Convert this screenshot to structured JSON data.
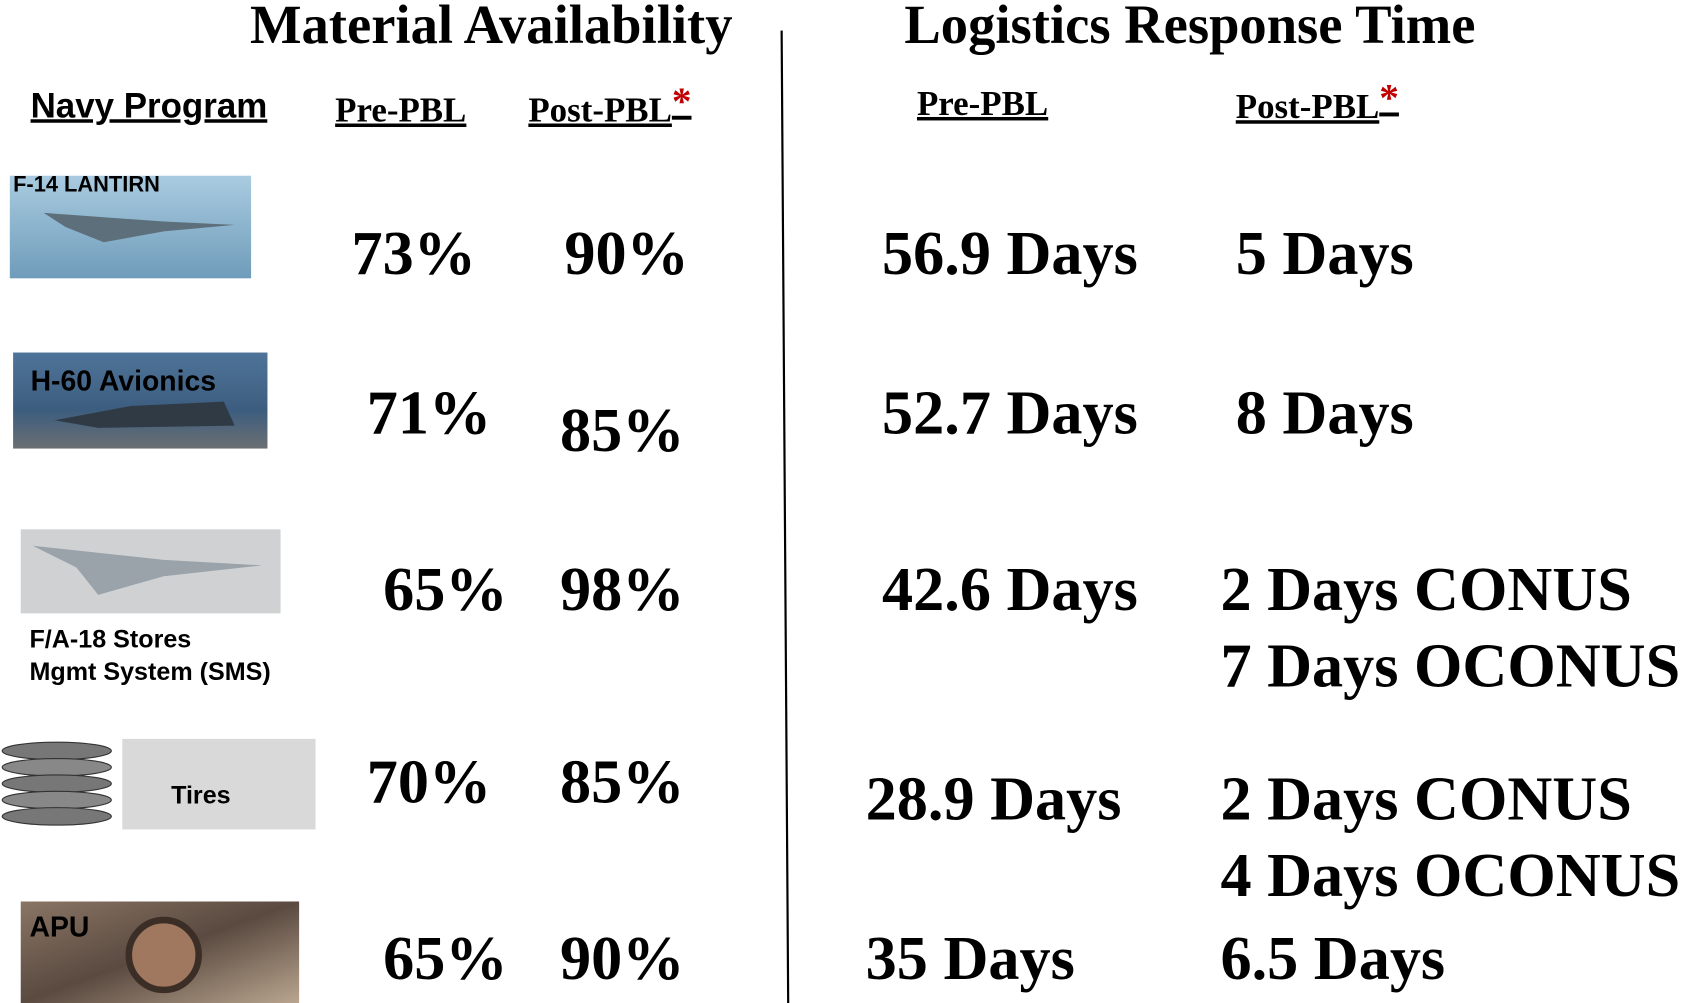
{
  "headings": {
    "availability": "Material Availability",
    "response": "Logistics Response Time"
  },
  "columns": {
    "program": "Navy Program",
    "availability_pre": "Pre-PBL",
    "availability_post": {
      "text": "Post-PBL",
      "mark": "*"
    },
    "response_pre": "Pre-PBL",
    "response_post": {
      "text": "Post-PBL",
      "mark": "*"
    }
  },
  "rows": [
    {
      "program": [
        "F-14 LANTIRN"
      ],
      "availability_pre": "73%",
      "availability_post": "90%",
      "response_pre": "56.9 Days",
      "response_post": [
        "5 Days"
      ]
    },
    {
      "program": [
        "H-60 Avionics"
      ],
      "availability_pre": "71%",
      "availability_post": "85%",
      "response_pre": "52.7 Days",
      "response_post": [
        "8 Days"
      ]
    },
    {
      "program": [
        "F/A-18 Stores",
        "Mgmt System (SMS)"
      ],
      "availability_pre": "65%",
      "availability_post": "98%",
      "response_pre": "42.6 Days",
      "response_post": [
        "2 Days CONUS",
        "7 Days OCONUS"
      ]
    },
    {
      "program": [
        "Tires"
      ],
      "availability_pre": "70%",
      "availability_post": "85%",
      "response_pre": "28.9 Days",
      "response_post": [
        "2 Days CONUS",
        "4 Days OCONUS"
      ]
    },
    {
      "program": [
        "APU"
      ],
      "availability_pre": "65%",
      "availability_post": "90%",
      "response_pre": "35 Days",
      "response_post": [
        "6.5 Days"
      ]
    }
  ]
}
